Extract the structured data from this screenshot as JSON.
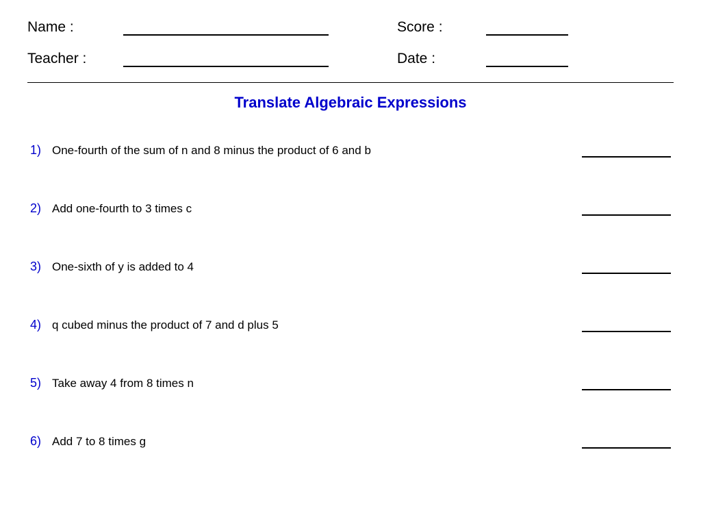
{
  "header": {
    "name_label": "Name :",
    "score_label": "Score :",
    "teacher_label": "Teacher :",
    "date_label": "Date :"
  },
  "title": {
    "text": "Translate Algebraic Expressions",
    "color": "#0000cc"
  },
  "number_color": "#0000cc",
  "text_color": "#000000",
  "problems": [
    {
      "num": "1)",
      "text": "One-fourth of the sum of n and 8 minus the product of 6 and b"
    },
    {
      "num": "2)",
      "text": "Add one-fourth to 3 times c"
    },
    {
      "num": "3)",
      "text": "One-sixth of y is added to 4"
    },
    {
      "num": "4)",
      "text": "q cubed minus the product of 7 and d plus 5"
    },
    {
      "num": "5)",
      "text": "Take away 4 from 8 times n"
    },
    {
      "num": "6)",
      "text": "Add 7 to 8 times g"
    }
  ]
}
